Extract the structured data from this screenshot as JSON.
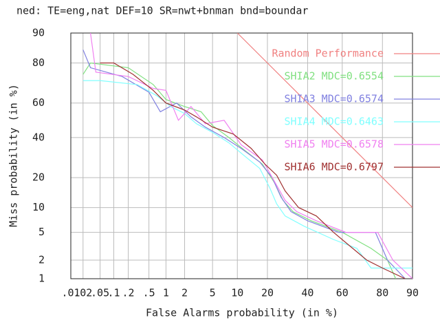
{
  "chart_data": {
    "type": "det",
    "title": "ned: TE=eng,nat DEF=10 SR=nwt+bnman bnd=boundar",
    "x_label": "False Alarms probability (in %)",
    "y_label": "Miss probability (in %)",
    "xlim": [
      0.01,
      90
    ],
    "ylim": [
      1,
      90
    ],
    "xticks": [
      {
        "value": 0.01,
        "label": ".01"
      },
      {
        "value": 0.02,
        "label": ".02"
      },
      {
        "value": 0.05,
        "label": ".05"
      },
      {
        "value": 0.1,
        "label": ".1"
      },
      {
        "value": 0.2,
        "label": ".2"
      },
      {
        "value": 0.5,
        "label": ".5"
      },
      1,
      2,
      5,
      10,
      20,
      40,
      60,
      80,
      90
    ],
    "yticks": [
      1,
      2,
      5,
      10,
      20,
      40,
      60,
      80,
      90
    ],
    "grid": true,
    "series": [
      {
        "name": "Random Performance",
        "color": "#f08080",
        "x": [
          10,
          90
        ],
        "values": [
          90,
          10
        ]
      },
      {
        "name": "SHIA2 MDC=0.6554",
        "color": "#80e080",
        "x": [
          0.02,
          0.03,
          0.2,
          0.6,
          1,
          2,
          3.5,
          5,
          8,
          12,
          18,
          23,
          27,
          32,
          42,
          60,
          75,
          82,
          85
        ],
        "values": [
          75,
          80,
          78,
          70,
          62,
          58,
          55,
          47,
          40,
          33,
          26,
          18,
          12,
          9,
          7,
          5,
          3,
          2,
          1
        ]
      },
      {
        "name": "SHIA3 MDC=0.6574",
        "color": "#8080e0",
        "x": [
          0.02,
          0.03,
          0.15,
          0.5,
          0.8,
          1.5,
          2.5,
          4,
          7,
          11,
          17,
          22,
          26,
          31,
          40,
          58,
          77,
          82,
          88
        ],
        "values": [
          85,
          78,
          74,
          66,
          55,
          60,
          52,
          46,
          40,
          34,
          27,
          20,
          13,
          9,
          7,
          5,
          5,
          2,
          1
        ]
      },
      {
        "name": "SHIA4 MDC=0.6463",
        "color": "#80ffff",
        "x": [
          0.02,
          0.05,
          0.3,
          0.7,
          1.2,
          2,
          3,
          5,
          8,
          12,
          17,
          21,
          24,
          28,
          38,
          55,
          68,
          75,
          90
        ],
        "values": [
          72,
          72,
          70,
          64,
          58,
          54,
          48,
          43,
          37,
          30,
          24,
          16,
          11,
          8,
          6,
          4,
          3,
          1.5,
          1.5
        ]
      },
      {
        "name": "SHIA5 MDC=0.6578",
        "color": "#f080f0",
        "x": [
          0.03,
          0.04,
          0.2,
          0.6,
          1,
          1.6,
          2.5,
          4,
          7,
          11,
          18,
          24,
          28,
          34,
          45,
          62,
          78,
          84,
          90
        ],
        "values": [
          90,
          76,
          74,
          68,
          67,
          50,
          58,
          48,
          50,
          36,
          28,
          17,
          12,
          9,
          7,
          5,
          5,
          2,
          1
        ]
      },
      {
        "name": "SHIA6 MDC=0.6797",
        "color": "#a03030",
        "x": [
          0.05,
          0.1,
          0.25,
          0.6,
          1,
          2,
          3,
          5,
          9,
          14,
          19,
          24,
          28,
          35,
          45,
          55,
          73,
          80,
          88
        ],
        "values": [
          80,
          80,
          75,
          67,
          60,
          56,
          52,
          46,
          42,
          34,
          26,
          21,
          15,
          10,
          8,
          5,
          2,
          1.5,
          1
        ]
      }
    ]
  }
}
